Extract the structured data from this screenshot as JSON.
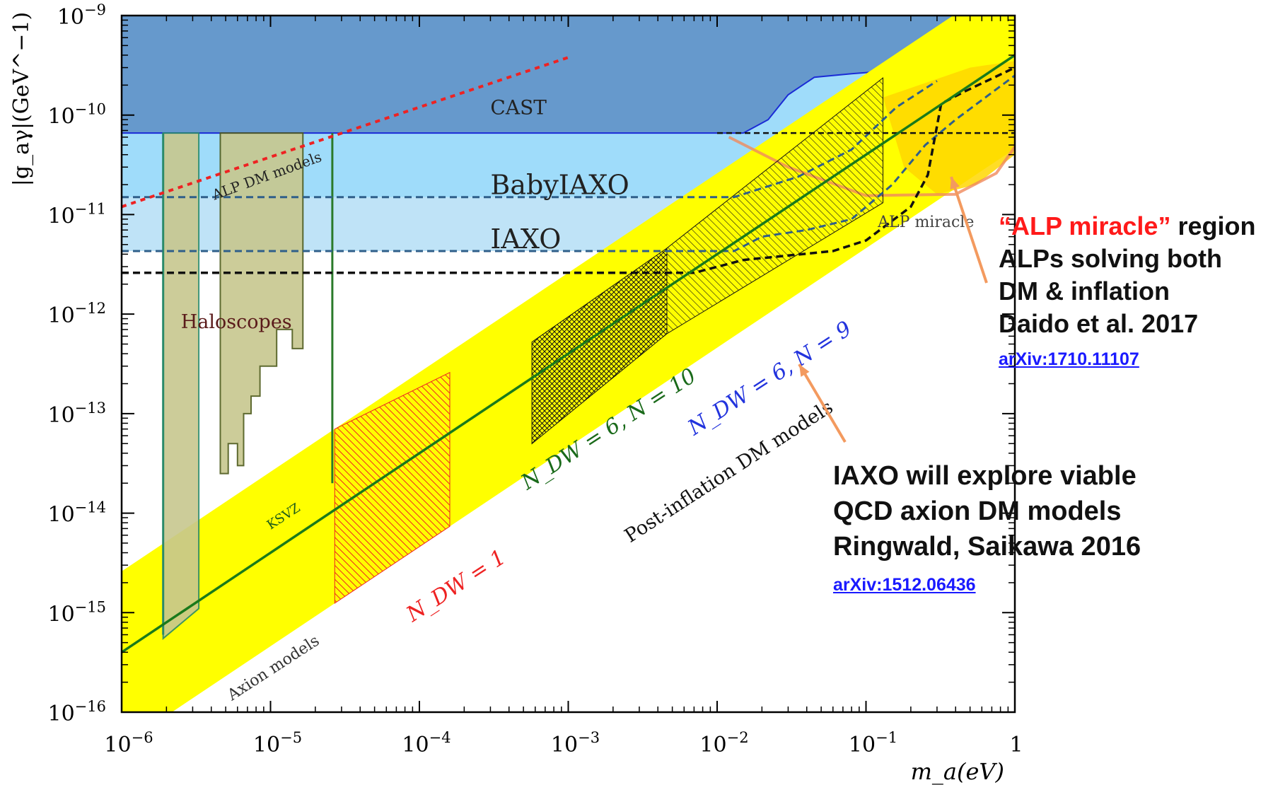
{
  "chart_data": {
    "type": "area",
    "xlabel": "m_a(eV)",
    "ylabel": "|g_aγ|(GeV^−1)",
    "xscale": "log",
    "yscale": "log",
    "xlim": [
      1e-06,
      1
    ],
    "ylim": [
      1e-16,
      1e-09
    ],
    "x_ticks": [
      "10^-6",
      "10^-5",
      "10^-4",
      "10^-3",
      "10^-2",
      "10^-1",
      "1"
    ],
    "y_ticks": [
      "10^-9",
      "10^-10",
      "10^-11",
      "10^-12",
      "10^-13",
      "10^-14",
      "10^-15",
      "10^-16"
    ],
    "colors": {
      "cast": "#6699cc",
      "babyiaxo": "#9fdcfa",
      "iaxo": "#bfe3f7",
      "axion_band": "#ffff00",
      "haloscopes": "#c7c78e",
      "ksvz": "#1a7a1a",
      "alp_dm": "#ee2222",
      "alp_miracle": "#ffd700"
    },
    "regions": {
      "cast": {
        "label": "CAST",
        "g_limit": 6.6e-11
      },
      "babyiaxo": {
        "label": "BabyIAXO",
        "g_limit": 1.5e-11
      },
      "iaxo": {
        "label": "IAXO",
        "g_limit": 4.3e-12
      },
      "iaxo_plus": {
        "g_limit": 2.6e-12
      },
      "haloscopes": {
        "label": "Haloscopes"
      },
      "axion_models": {
        "label": "Axion models"
      },
      "ksvz": {
        "label": "KSVZ",
        "g_at_1e-6": 4e-16,
        "g_at_1eV": 4e-10
      },
      "alp_dm_models": {
        "label": "ALP DM models",
        "g_at_1e-6": 1.2e-11,
        "slope": 0.5
      },
      "alp_miracle": {
        "label": "ALP miracle"
      },
      "post_inflation": {
        "label": "Post-inflation DM models"
      },
      "ndw_1": {
        "label": "N_DW = 1",
        "m_range": [
          2.7e-05,
          0.00016
        ]
      },
      "ndw6_n10": {
        "label": "N_DW = 6, N = 10",
        "m_range": [
          0.00057,
          0.0046
        ]
      },
      "ndw6_n9": {
        "label": "N_DW = 6, N = 9",
        "m_range": [
          0.0046,
          0.13
        ]
      }
    }
  },
  "callouts": {
    "alp_miracle_title": "“ALP miracle”",
    "alp_miracle_word": " region",
    "alp_miracle_l2": "ALPs solving both",
    "alp_miracle_l3": "DM & inflation",
    "alp_miracle_l4": "Daido et al. 2017",
    "alp_miracle_link": "arXiv:1710.11107",
    "iaxo_l1": "IAXO  will explore viable",
    "iaxo_l2": "QCD axion DM models",
    "iaxo_l3": "Ringwald, Saikawa 2016",
    "iaxo_link": "arXiv:1512.06436"
  }
}
